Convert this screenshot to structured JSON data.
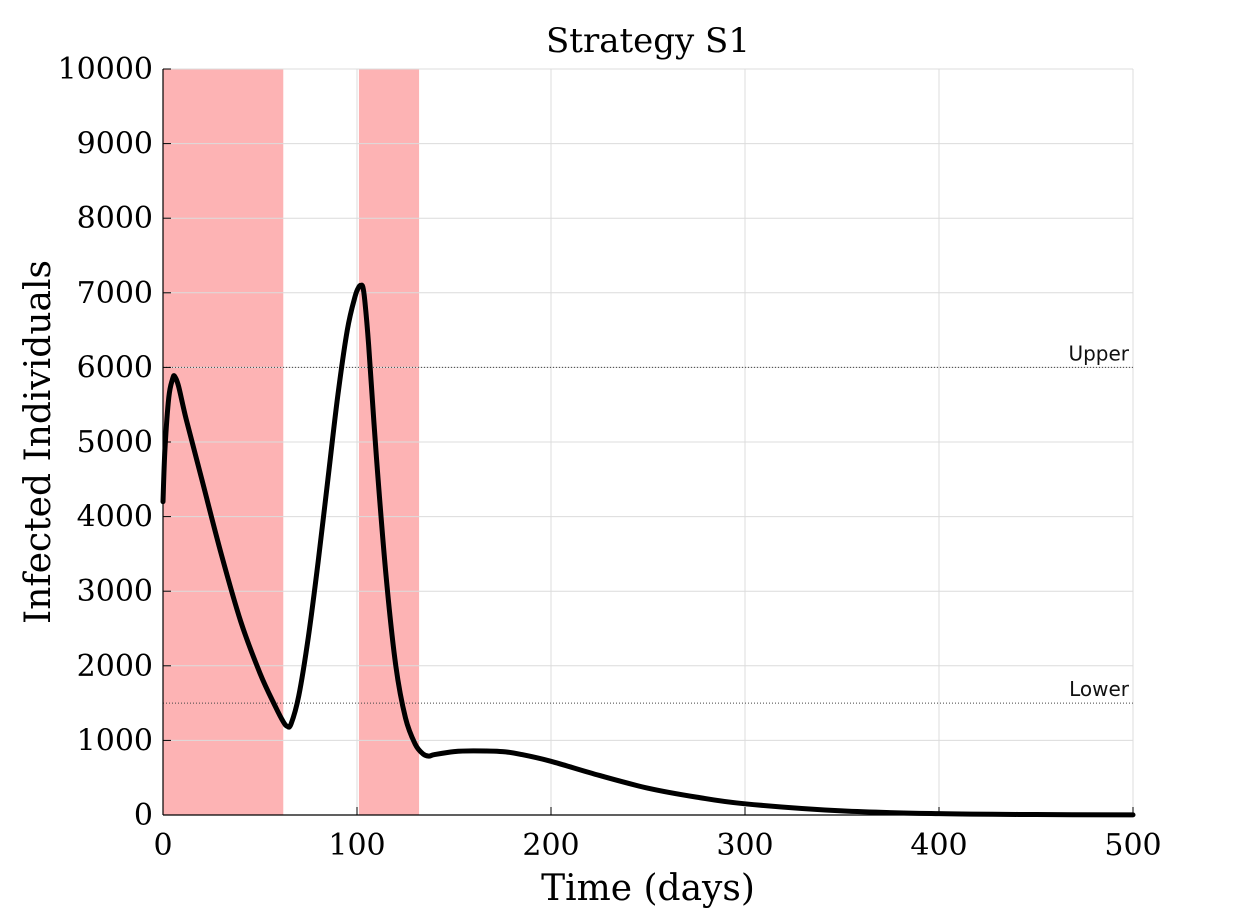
{
  "chart_data": {
    "type": "line",
    "title": "Strategy S1",
    "xlabel": "Time (days)",
    "ylabel": "Infected Individuals",
    "xlim": [
      0,
      500
    ],
    "ylim": [
      0,
      10000
    ],
    "xticks": [
      0,
      100,
      200,
      300,
      400,
      500
    ],
    "yticks": [
      0,
      1000,
      2000,
      3000,
      4000,
      5000,
      6000,
      7000,
      8000,
      9000,
      10000
    ],
    "grid": true,
    "shaded_intervals": [
      {
        "start": 0,
        "end": 62,
        "color": "#fdb3b4"
      },
      {
        "start": 101,
        "end": 132,
        "color": "#fdb3b4"
      }
    ],
    "reference_lines": [
      {
        "name": "Upper",
        "y": 6000
      },
      {
        "name": "Lower",
        "y": 1500
      }
    ],
    "series": [
      {
        "color": "#000000",
        "x": [
          0,
          1,
          3,
          5,
          6,
          8,
          12,
          20,
          30,
          40,
          50,
          58,
          62,
          64,
          66,
          70,
          75,
          80,
          85,
          90,
          95,
          99,
          101,
          102,
          103,
          104,
          106,
          110,
          115,
          120,
          125,
          130,
          134,
          137,
          140,
          150,
          160,
          175,
          185,
          200,
          225,
          250,
          275,
          300,
          350,
          400,
          450,
          500
        ],
        "y": [
          4200,
          4900,
          5600,
          5850,
          5880,
          5750,
          5300,
          4500,
          3500,
          2600,
          1900,
          1450,
          1250,
          1190,
          1220,
          1600,
          2400,
          3400,
          4500,
          5600,
          6500,
          6950,
          7080,
          7100,
          7080,
          6900,
          6300,
          4800,
          3200,
          2000,
          1300,
          950,
          820,
          790,
          810,
          850,
          860,
          850,
          810,
          720,
          530,
          360,
          240,
          150,
          55,
          18,
          6,
          2
        ]
      }
    ]
  },
  "colors": {
    "shade": "#fdb3b4",
    "line": "#000000",
    "grid": "#dcdcdc"
  }
}
